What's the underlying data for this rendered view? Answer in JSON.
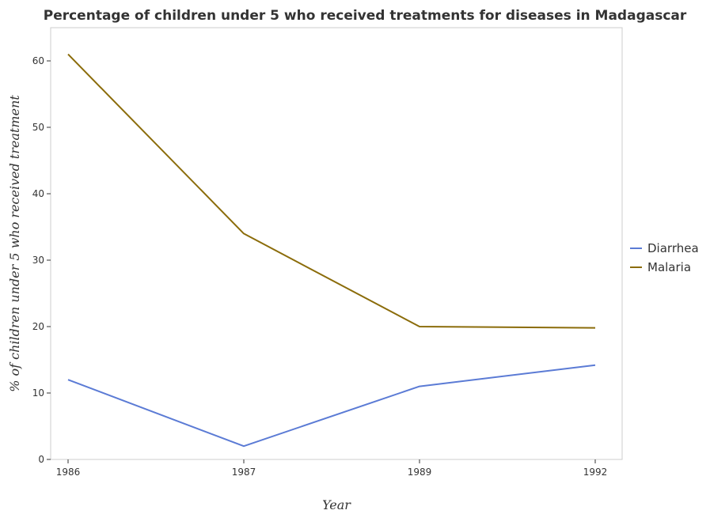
{
  "chart_data": {
    "type": "line",
    "title": "Percentage of children under 5 who received treatments for diseases in Madagascar",
    "xlabel": "Year",
    "ylabel": "% of children under 5 who received treatment",
    "categories": [
      "1986",
      "1987",
      "1989",
      "1992"
    ],
    "ylim": [
      0,
      65
    ],
    "yticks": [
      0,
      10,
      20,
      30,
      40,
      50,
      60
    ],
    "grid": false,
    "legend_position": "right",
    "series": [
      {
        "name": "Diarrhea",
        "color": "#5b7bd5",
        "values": [
          12,
          2,
          11,
          14.2
        ]
      },
      {
        "name": "Malaria",
        "color": "#8b6c0a",
        "values": [
          61,
          34,
          20,
          19.8
        ]
      }
    ]
  }
}
